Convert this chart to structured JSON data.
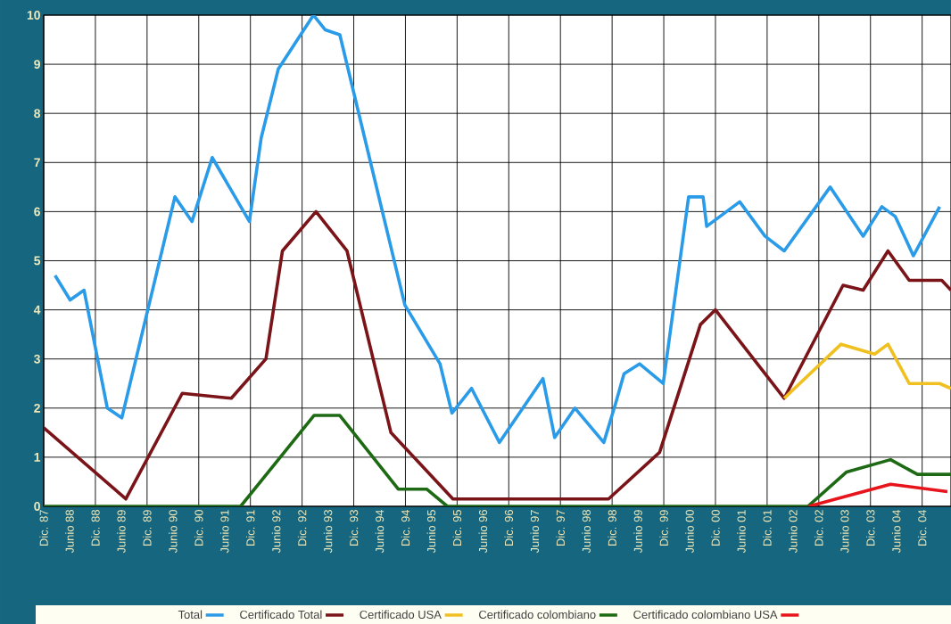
{
  "chart_data": {
    "type": "line",
    "xlim": [
      "1987-12-01",
      "2005-06-22"
    ],
    "ylim": [
      0,
      10
    ],
    "yticks": [
      0,
      1,
      2,
      3,
      4,
      5,
      6,
      7,
      8,
      9,
      10
    ],
    "xticks": [
      {
        "value": "1987-12",
        "label": "Dic. 87"
      },
      {
        "value": "1988-06",
        "label": "Junio 88"
      },
      {
        "value": "1988-12",
        "label": "Dic. 88"
      },
      {
        "value": "1989-06",
        "label": "Junio 89"
      },
      {
        "value": "1989-12",
        "label": "Dic. 89"
      },
      {
        "value": "1990-06",
        "label": "Junio 90"
      },
      {
        "value": "1990-12",
        "label": "Dic. 90"
      },
      {
        "value": "1991-06",
        "label": "Junio 91"
      },
      {
        "value": "1991-12",
        "label": "Dic. 91"
      },
      {
        "value": "1992-06",
        "label": "Junio 92"
      },
      {
        "value": "1992-12",
        "label": "Dic. 92"
      },
      {
        "value": "1993-06",
        "label": "Junio 93"
      },
      {
        "value": "1993-12",
        "label": "Dic. 93"
      },
      {
        "value": "1994-06",
        "label": "Junio 94"
      },
      {
        "value": "1994-12",
        "label": "Dic. 94"
      },
      {
        "value": "1995-06",
        "label": "Junio 95"
      },
      {
        "value": "1995-12",
        "label": "Dic. 95"
      },
      {
        "value": "1996-06",
        "label": "Junio 96"
      },
      {
        "value": "1996-12",
        "label": "Dic. 96"
      },
      {
        "value": "1997-06",
        "label": "Junio 97"
      },
      {
        "value": "1997-12",
        "label": "Dic. 97"
      },
      {
        "value": "1998-06",
        "label": "Junio 98"
      },
      {
        "value": "1998-12",
        "label": "Dic. 98"
      },
      {
        "value": "1999-06",
        "label": "Junio 99"
      },
      {
        "value": "1999-12",
        "label": "Dic. 99"
      },
      {
        "value": "2000-06",
        "label": "Junio 00"
      },
      {
        "value": "2000-12",
        "label": "Dic. 00"
      },
      {
        "value": "2001-06",
        "label": "Junio 01"
      },
      {
        "value": "2001-12",
        "label": "Dic. 01"
      },
      {
        "value": "2002-06",
        "label": "Junio 02"
      },
      {
        "value": "2002-12",
        "label": "Dic. 02"
      },
      {
        "value": "2003-06",
        "label": "Junio 03"
      },
      {
        "value": "2003-12",
        "label": "Dic. 03"
      },
      {
        "value": "2004-06",
        "label": "Junio 04"
      },
      {
        "value": "2004-12",
        "label": "Dic. 04"
      }
    ],
    "grid": true,
    "legend": "bottom",
    "series": [
      {
        "name": "Total",
        "color": "#2a9be8",
        "x": [
          "1988-02-20",
          "1988-06-05",
          "1988-09-12",
          "1989-02-24",
          "1989-06-05",
          "1990-06-15",
          "1990-10-14",
          "1991-03-05",
          "1991-11-24",
          "1992-02-16",
          "1992-06-15",
          "1993-02-20",
          "1993-05-13",
          "1993-08-24",
          "1994-11-27",
          "1995-08-02",
          "1995-10-25",
          "1996-03-12",
          "1996-09-26",
          "1997-07-29",
          "1997-10-21",
          "1998-03-12",
          "1998-10-03",
          "1998-12-26",
          "1999-02-24",
          "1999-06-12",
          "1999-11-27",
          "2000-05-24",
          "2000-09-05",
          "2000-09-30",
          "2001-05-20",
          "2001-11-16",
          "2002-03-30",
          "2003-02-20",
          "2003-10-10",
          "2004-02-20",
          "2004-05-24",
          "2004-09-30",
          "2005-04-03"
        ],
        "values": [
          4.7,
          4.2,
          4.4,
          2.0,
          1.8,
          6.3,
          5.8,
          7.1,
          5.8,
          7.5,
          8.9,
          10.0,
          9.7,
          9.6,
          4.1,
          2.9,
          1.9,
          2.4,
          1.3,
          2.6,
          1.4,
          2.0,
          1.3,
          2.1,
          2.7,
          2.9,
          2.5,
          6.3,
          6.3,
          5.7,
          6.2,
          5.5,
          5.2,
          6.5,
          5.5,
          6.1,
          5.9,
          5.1,
          6.1
        ]
      },
      {
        "name": "Certificado Total",
        "color": "#7a1418",
        "x": [
          "1987-12-01",
          "1989-07-03",
          "1990-08-06",
          "1991-07-18",
          "1992-03-19",
          "1992-07-14",
          "1993-03-08",
          "1993-10-14",
          "1994-08-20",
          "1995-11-02",
          "1998-11-06",
          "1999-11-02",
          "2000-08-16",
          "2000-12-01",
          "2001-11-16",
          "2002-03-30",
          "2003-05-20",
          "2003-10-10",
          "2004-04-03",
          "2004-09-01",
          "2005-04-18",
          "2005-06-22"
        ],
        "values": [
          1.6,
          0.15,
          2.3,
          2.2,
          3.0,
          5.2,
          6.0,
          5.2,
          1.5,
          0.15,
          0.15,
          1.1,
          3.7,
          4.0,
          2.7,
          2.2,
          4.5,
          4.4,
          5.2,
          4.6,
          4.6,
          4.4
        ]
      },
      {
        "name": "Certificado USA",
        "color": "#f0c020",
        "x": [
          "2002-03-30",
          "2003-05-06",
          "2003-12-30",
          "2004-04-03",
          "2004-09-01",
          "2005-04-03",
          "2005-06-22"
        ],
        "values": [
          2.2,
          3.3,
          3.1,
          3.3,
          2.5,
          2.5,
          2.4
        ]
      },
      {
        "name": "Certificado colombiano",
        "color": "#1e6a14",
        "x": [
          "1987-12-01",
          "1991-09-23",
          "1993-02-24",
          "1993-08-24",
          "1994-10-11",
          "1995-04-29",
          "1995-09-23",
          "2002-09-15",
          "2003-06-15",
          "2004-04-21",
          "2004-10-28",
          "2005-06-22"
        ],
        "values": [
          0,
          0,
          1.85,
          1.85,
          0.35,
          0.35,
          0,
          0,
          0.7,
          0.95,
          0.65,
          0.65
        ]
      },
      {
        "name": "Certificado colombiano USA",
        "color": "#e8141c",
        "x": [
          "2002-09-22",
          "2004-04-21",
          "2005-05-27"
        ],
        "values": [
          0,
          0.45,
          0.3
        ]
      }
    ]
  }
}
